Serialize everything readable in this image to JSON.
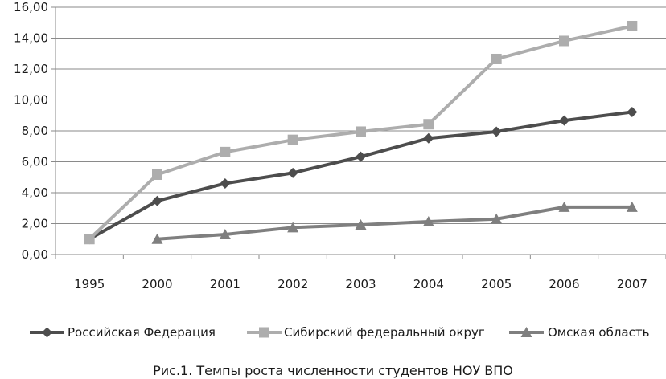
{
  "chart_data": {
    "type": "line",
    "title": "",
    "caption": "Рис.1. Темпы роста численности студентов НОУ ВПО",
    "xlabel": "",
    "ylabel": "",
    "categories": [
      "1995",
      "2000",
      "2001",
      "2002",
      "2003",
      "2004",
      "2005",
      "2006",
      "2007"
    ],
    "y_ticks": [
      "0,00",
      "2,00",
      "4,00",
      "6,00",
      "8,00",
      "10,00",
      "12,00",
      "14,00",
      "16,00"
    ],
    "ylim": [
      0,
      16
    ],
    "grid": "horizontal",
    "legend_position": "bottom",
    "series": [
      {
        "name": "Российская Федерация",
        "color": "#4d4d4d",
        "marker": "diamond",
        "values": [
          1.0,
          3.47,
          4.6,
          5.28,
          6.33,
          7.52,
          7.95,
          8.67,
          9.22
        ]
      },
      {
        "name": "Сибирский федеральный округ",
        "color": "#adadad",
        "marker": "square",
        "values": [
          1.0,
          5.17,
          6.63,
          7.42,
          7.95,
          8.43,
          12.65,
          13.82,
          14.78
        ]
      },
      {
        "name": "Омская область",
        "color": "#7f7f7f",
        "marker": "triangle",
        "values": [
          null,
          1.0,
          1.3,
          1.75,
          1.92,
          2.13,
          2.3,
          3.07,
          3.07
        ]
      }
    ]
  }
}
